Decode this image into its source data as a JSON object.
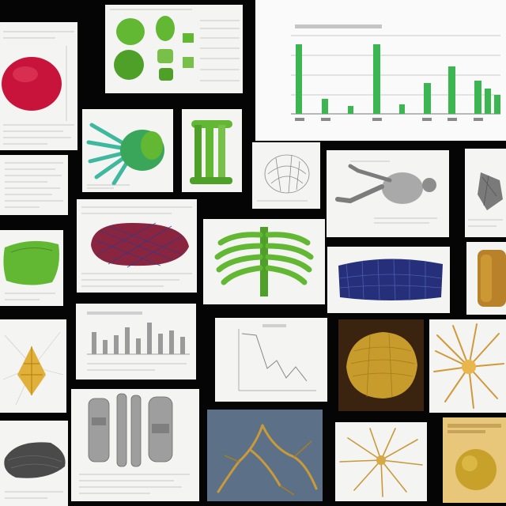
{
  "colors": {
    "background": "#050505",
    "paper": "#f4f4f2",
    "specimen_red": "#c8143b",
    "specimen_green": "#62b833",
    "specimen_blue": "#26307a",
    "specimen_gold": "#d9a73c",
    "chart_green": "#3cb651",
    "chart_gray": "#9a9a9a"
  },
  "collage": {
    "tiles": [
      {
        "name": "red-oval-specimen",
        "icon": "red-organ-icon"
      },
      {
        "name": "green-blob-sheet",
        "icon": "green-blob-icon"
      },
      {
        "name": "green-bar-chart",
        "icon": "bar-chart-icon"
      },
      {
        "name": "green-hand-bones",
        "icon": "hand-bones-icon"
      },
      {
        "name": "green-tall-bones",
        "icon": "leg-bones-icon"
      },
      {
        "name": "sketch-organ",
        "icon": "sketch-icon"
      },
      {
        "name": "lying-figure",
        "icon": "figure-icon"
      },
      {
        "name": "gray-sketch-right",
        "icon": "sketch-icon"
      },
      {
        "name": "text-notes-page",
        "icon": "document-icon"
      },
      {
        "name": "red-blue-mesh",
        "icon": "mesh-icon"
      },
      {
        "name": "green-ribcage",
        "icon": "ribcage-icon"
      },
      {
        "name": "blue-mesh-specimen",
        "icon": "mesh-icon"
      },
      {
        "name": "amber-specimen",
        "icon": "organ-icon"
      },
      {
        "name": "green-lung",
        "icon": "lung-icon"
      },
      {
        "name": "gray-bar-chart",
        "icon": "bar-chart-icon"
      },
      {
        "name": "line-chart",
        "icon": "line-chart-icon"
      },
      {
        "name": "gold-specimen-dark",
        "icon": "organ-icon"
      },
      {
        "name": "gold-tendril",
        "icon": "tendril-icon"
      },
      {
        "name": "gold-fan",
        "icon": "fan-icon"
      },
      {
        "name": "gray-blob",
        "icon": "organ-icon"
      },
      {
        "name": "gray-skeleton-pieces",
        "icon": "bones-icon"
      },
      {
        "name": "gold-roots-blue",
        "icon": "roots-icon"
      },
      {
        "name": "gold-star-root",
        "icon": "star-root-icon"
      },
      {
        "name": "gold-sphere",
        "icon": "sphere-icon"
      }
    ]
  }
}
